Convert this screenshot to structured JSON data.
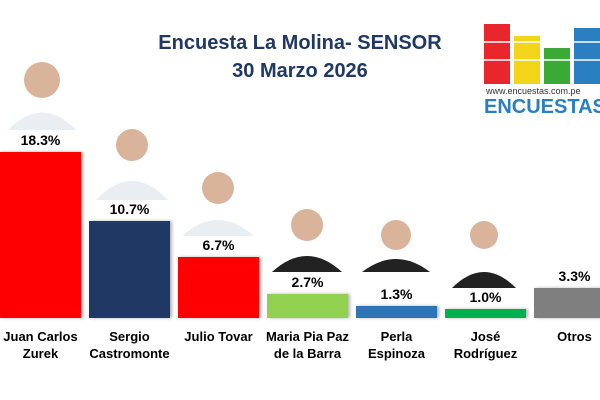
{
  "chart_data": {
    "type": "bar",
    "title": "Encuesta La Molina- SENSOR",
    "subtitle": "30 Marzo 2026",
    "brand": "ENCUESTAS",
    "website": "www.encuestas.com.pe",
    "categories": [
      "Juan Carlos Zurek",
      "Sergio Castromonte",
      "Julio Tovar",
      "Maria Pia Paz de la Barra",
      "Perla Espinoza",
      "José Rodríguez",
      "Otros"
    ],
    "values": [
      18.3,
      10.7,
      6.7,
      2.7,
      1.3,
      1.0,
      3.3
    ],
    "value_labels": [
      "18.3%",
      "10.7%",
      "6.7%",
      "2.7%",
      "1.3%",
      "1.0%",
      "3.3%"
    ],
    "colors": [
      "#ff0000",
      "#1f3864",
      "#ff0000",
      "#92d050",
      "#2e75b6",
      "#00b050",
      "#7f7f7f"
    ]
  }
}
